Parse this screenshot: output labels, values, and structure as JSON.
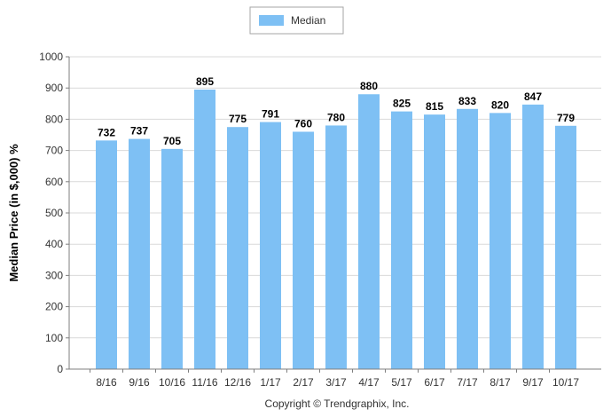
{
  "chart_data": {
    "type": "bar",
    "title": "",
    "xlabel": "",
    "ylabel": "Median Price (in $,000) %",
    "ylim": [
      0,
      1000
    ],
    "yticks": [
      0,
      100,
      200,
      300,
      400,
      500,
      600,
      700,
      800,
      900,
      1000
    ],
    "grid": true,
    "legend_position": "top-center",
    "categories": [
      "8/16",
      "9/16",
      "10/16",
      "11/16",
      "12/16",
      "1/17",
      "2/17",
      "3/17",
      "4/17",
      "5/17",
      "6/17",
      "7/17",
      "8/17",
      "9/17",
      "10/17"
    ],
    "series": [
      {
        "name": "Median",
        "color": "#7ec0f4",
        "values": [
          732,
          737,
          705,
          895,
          775,
          791,
          760,
          780,
          880,
          825,
          815,
          833,
          820,
          847,
          779
        ]
      }
    ]
  },
  "footer": {
    "copyright": "Copyright © Trendgraphix, Inc."
  }
}
